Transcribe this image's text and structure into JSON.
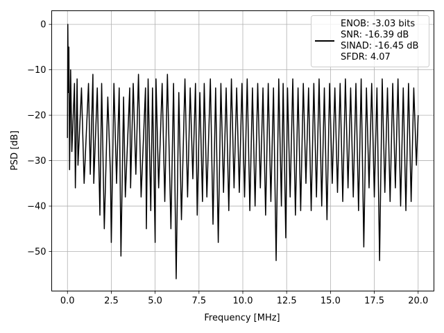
{
  "chart_data": {
    "type": "line",
    "title": "",
    "xlabel": "Frequency [MHz]",
    "ylabel": "PSD [dB]",
    "xlim": [
      -0.9,
      20.9
    ],
    "ylim": [
      -58.7,
      3.0
    ],
    "xticks": [
      0.0,
      2.5,
      5.0,
      7.5,
      10.0,
      12.5,
      15.0,
      17.5,
      20.0
    ],
    "xtick_labels": [
      "0.0",
      "2.5",
      "5.0",
      "7.5",
      "10.0",
      "12.5",
      "15.0",
      "17.5",
      "20.0"
    ],
    "yticks": [
      0,
      -10,
      -20,
      -30,
      -40,
      -50
    ],
    "ytick_labels": [
      "0",
      "−10",
      "−20",
      "−30",
      "−40",
      "−50"
    ],
    "grid": true,
    "legend_position": "top-right",
    "legend_lines": [
      "ENOB: -3.03 bits",
      "SNR: -16.39 dB",
      "SINAD: -16.45 dB",
      "SFDR: 4.07"
    ],
    "series": [
      {
        "color": "#000000",
        "x": [
          0.0,
          0.02,
          0.05,
          0.08,
          0.12,
          0.18,
          0.25,
          0.4,
          0.45,
          0.55,
          0.6,
          0.8,
          0.95,
          1.2,
          1.3,
          1.45,
          1.5,
          1.7,
          1.85,
          1.95,
          2.1,
          2.3,
          2.45,
          2.5,
          2.65,
          2.8,
          2.95,
          3.05,
          3.2,
          3.3,
          3.55,
          3.6,
          3.75,
          3.9,
          4.05,
          4.2,
          4.45,
          4.5,
          4.6,
          4.75,
          4.85,
          5.0,
          5.05,
          5.2,
          5.4,
          5.55,
          5.7,
          5.9,
          6.05,
          6.2,
          6.35,
          6.5,
          6.7,
          6.85,
          7.0,
          7.15,
          7.3,
          7.4,
          7.55,
          7.7,
          7.8,
          7.95,
          8.15,
          8.3,
          8.45,
          8.6,
          8.75,
          8.9,
          9.05,
          9.2,
          9.35,
          9.5,
          9.65,
          9.8,
          9.95,
          10.1,
          10.25,
          10.4,
          10.55,
          10.7,
          10.85,
          11.0,
          11.15,
          11.3,
          11.45,
          11.6,
          11.75,
          11.9,
          12.05,
          12.2,
          12.3,
          12.45,
          12.55,
          12.7,
          12.85,
          13.0,
          13.15,
          13.3,
          13.45,
          13.6,
          13.75,
          13.9,
          14.05,
          14.2,
          14.35,
          14.5,
          14.65,
          14.8,
          14.95,
          15.1,
          15.25,
          15.4,
          15.55,
          15.7,
          15.85,
          16.0,
          16.15,
          16.3,
          16.45,
          16.6,
          16.75,
          16.9,
          17.05,
          17.2,
          17.35,
          17.5,
          17.65,
          17.8,
          17.95,
          18.1,
          18.25,
          18.4,
          18.55,
          18.7,
          18.85,
          19.0,
          19.15,
          19.3,
          19.45,
          19.6,
          19.75,
          19.9,
          20.0
        ],
        "y": [
          -25,
          0,
          -15,
          -5,
          -32,
          -10,
          -28,
          -13,
          -36,
          -12,
          -31,
          -14,
          -35,
          -13,
          -33,
          -11,
          -35,
          -14,
          -42,
          -13,
          -45,
          -16,
          -33,
          -48,
          -13,
          -35,
          -14,
          -51,
          -16,
          -38,
          -14,
          -36,
          -13,
          -33,
          -11,
          -38,
          -14,
          -45,
          -12,
          -41,
          -14,
          -48,
          -12,
          -36,
          -13,
          -39,
          -11,
          -45,
          -13,
          -56,
          -15,
          -43,
          -12,
          -38,
          -14,
          -34,
          -13,
          -42,
          -15,
          -39,
          -13,
          -38,
          -12,
          -44,
          -14,
          -48,
          -13,
          -37,
          -14,
          -41,
          -12,
          -36,
          -14,
          -37,
          -13,
          -38,
          -12,
          -41,
          -14,
          -40,
          -13,
          -36,
          -14,
          -42,
          -13,
          -39,
          -14,
          -52,
          -12,
          -40,
          -13,
          -47,
          -14,
          -38,
          -12,
          -42,
          -14,
          -41,
          -13,
          -35,
          -14,
          -41,
          -13,
          -38,
          -12,
          -40,
          -14,
          -43,
          -13,
          -35,
          -14,
          -37,
          -13,
          -39,
          -12,
          -36,
          -14,
          -38,
          -13,
          -41,
          -12,
          -49,
          -14,
          -36,
          -13,
          -38,
          -14,
          -52,
          -12,
          -37,
          -14,
          -39,
          -13,
          -36,
          -12,
          -40,
          -14,
          -41,
          -13,
          -39,
          -14,
          -31,
          -20
        ]
      }
    ]
  }
}
